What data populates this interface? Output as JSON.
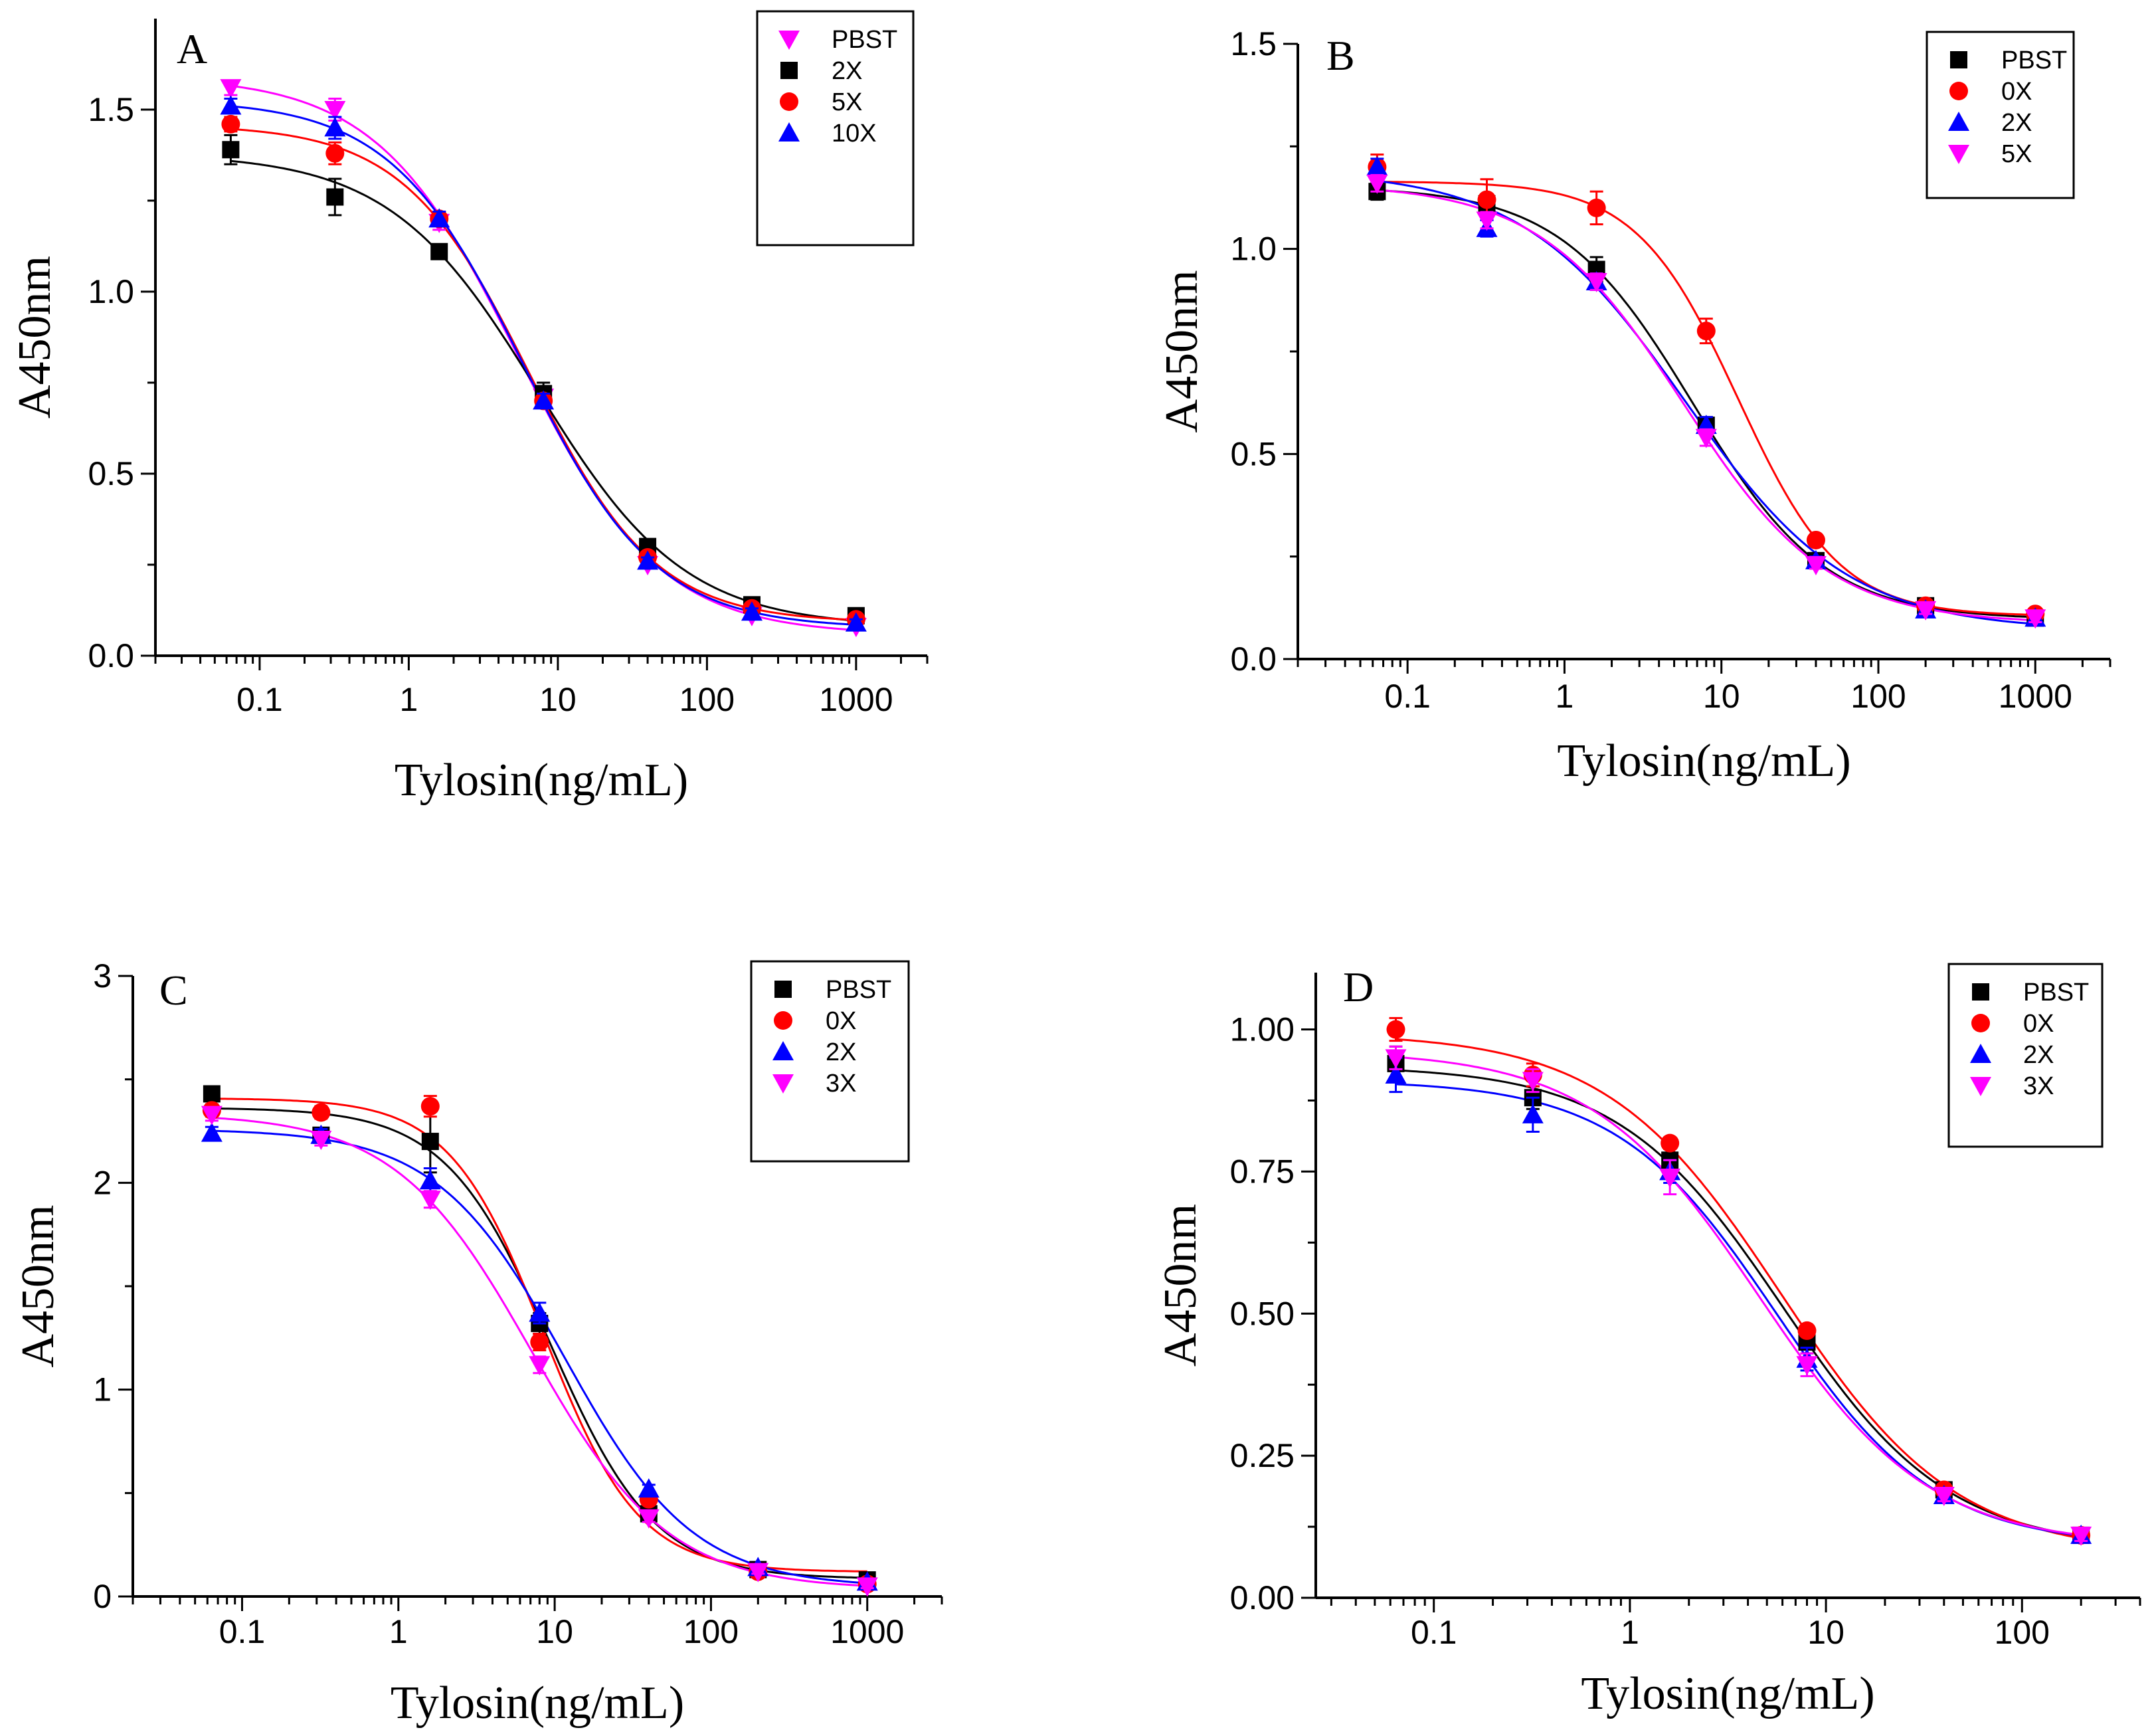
{
  "chart_data": [
    {
      "type": "scatter",
      "panel_label": "A",
      "title": "",
      "xlabel": "Tylosin(ng/mL)",
      "ylabel": "A450nm",
      "xscale": "log",
      "xlim": [
        0.02,
        3000
      ],
      "ylim": [
        0,
        1.75
      ],
      "x_ticks": [
        0.1,
        1,
        10,
        100,
        1000
      ],
      "x_tick_labels": [
        "0.1",
        "1",
        "10",
        "100",
        "1000"
      ],
      "y_ticks": [
        0,
        0.5,
        1.0,
        1.5
      ],
      "y_tick_labels": [
        "0.0",
        "0.5",
        "1.0",
        "1.5"
      ],
      "grid": false,
      "legend_position": "top-right",
      "x": [
        0.064,
        0.32,
        1.6,
        8,
        40,
        200,
        1000
      ],
      "series": [
        {
          "name": "PBST",
          "color": "#ff00ff",
          "marker": "triangle-down",
          "values": [
            1.56,
            1.5,
            1.19,
            0.71,
            0.25,
            0.11,
            0.08
          ],
          "error": [
            0.02,
            0.03,
            0.02,
            0.03,
            0.01,
            0.01,
            0.01
          ]
        },
        {
          "name": "2X",
          "color": "#000000",
          "marker": "square",
          "values": [
            1.39,
            1.26,
            1.11,
            0.72,
            0.3,
            0.14,
            0.11
          ],
          "error": [
            0.04,
            0.05,
            0.02,
            0.03,
            0.01,
            0.01,
            0.01
          ]
        },
        {
          "name": "5X",
          "color": "#ff0000",
          "marker": "circle",
          "values": [
            1.46,
            1.38,
            1.2,
            0.7,
            0.27,
            0.13,
            0.1
          ],
          "error": [
            0.02,
            0.03,
            0.02,
            0.02,
            0.01,
            0.01,
            0.01
          ]
        },
        {
          "name": "10X",
          "color": "#0000ff",
          "marker": "triangle-up",
          "values": [
            1.51,
            1.45,
            1.2,
            0.7,
            0.26,
            0.12,
            0.09
          ],
          "error": [
            0.02,
            0.03,
            0.02,
            0.02,
            0.01,
            0.01,
            0.01
          ]
        }
      ]
    },
    {
      "type": "scatter",
      "panel_label": "B",
      "title": "",
      "xlabel": "Tylosin(ng/mL)",
      "ylabel": "A450nm",
      "xscale": "log",
      "xlim": [
        0.02,
        3000
      ],
      "ylim": [
        0,
        1.5
      ],
      "x_ticks": [
        0.1,
        1,
        10,
        100,
        1000
      ],
      "x_tick_labels": [
        "0.1",
        "1",
        "10",
        "100",
        "1000"
      ],
      "y_ticks": [
        0,
        0.5,
        1.0,
        1.5
      ],
      "y_tick_labels": [
        "0.0",
        "0.5",
        "1.0",
        "1.5"
      ],
      "grid": false,
      "legend_position": "top-right",
      "x": [
        0.064,
        0.32,
        1.6,
        8,
        40,
        200,
        1000
      ],
      "series": [
        {
          "name": "PBST",
          "color": "#000000",
          "marker": "square",
          "values": [
            1.14,
            1.11,
            0.95,
            0.57,
            0.24,
            0.13,
            0.1
          ],
          "error": [
            0.02,
            0.02,
            0.03,
            0.02,
            0.01,
            0.01,
            0.01
          ]
        },
        {
          "name": "0X",
          "color": "#ff0000",
          "marker": "circle",
          "values": [
            1.2,
            1.12,
            1.1,
            0.8,
            0.29,
            0.13,
            0.11
          ],
          "error": [
            0.03,
            0.05,
            0.04,
            0.03,
            0.01,
            0.01,
            0.01
          ]
        },
        {
          "name": "2X",
          "color": "#0000ff",
          "marker": "triangle-up",
          "values": [
            1.2,
            1.05,
            0.92,
            0.57,
            0.24,
            0.12,
            0.1
          ],
          "error": [
            0.02,
            0.02,
            0.02,
            0.02,
            0.01,
            0.01,
            0.01
          ]
        },
        {
          "name": "5X",
          "color": "#ff00ff",
          "marker": "triangle-down",
          "values": [
            1.16,
            1.07,
            0.92,
            0.54,
            0.23,
            0.12,
            0.1
          ],
          "error": [
            0.02,
            0.02,
            0.02,
            0.02,
            0.01,
            0.01,
            0.01
          ]
        }
      ]
    },
    {
      "type": "scatter",
      "panel_label": "C",
      "title": "",
      "xlabel": "Tylosin(ng/mL)",
      "ylabel": "A450nm",
      "xscale": "log",
      "xlim": [
        0.02,
        3000
      ],
      "ylim": [
        0,
        3
      ],
      "x_ticks": [
        0.1,
        1,
        10,
        100,
        1000
      ],
      "x_tick_labels": [
        "0.1",
        "1",
        "10",
        "100",
        "1000"
      ],
      "y_ticks": [
        0,
        1,
        2,
        3
      ],
      "y_tick_labels": [
        "0",
        "1",
        "2",
        "3"
      ],
      "grid": false,
      "legend_position": "top-right",
      "x": [
        0.064,
        0.32,
        1.6,
        8,
        40,
        200,
        1000
      ],
      "series": [
        {
          "name": "PBST",
          "color": "#000000",
          "marker": "square",
          "values": [
            2.43,
            2.23,
            2.2,
            1.32,
            0.4,
            0.13,
            0.08
          ],
          "error": [
            0.02,
            0.03,
            0.15,
            0.05,
            0.02,
            0.01,
            0.01
          ]
        },
        {
          "name": "0X",
          "color": "#ff0000",
          "marker": "circle",
          "values": [
            2.35,
            2.34,
            2.37,
            1.23,
            0.47,
            0.12,
            0.06
          ],
          "error": [
            0.03,
            0.03,
            0.05,
            0.04,
            0.02,
            0.01,
            0.01
          ]
        },
        {
          "name": "2X",
          "color": "#0000ff",
          "marker": "triangle-up",
          "values": [
            2.24,
            2.23,
            2.01,
            1.37,
            0.52,
            0.14,
            0.07
          ],
          "error": [
            0.03,
            0.03,
            0.06,
            0.05,
            0.02,
            0.01,
            0.01
          ]
        },
        {
          "name": "3X",
          "color": "#ff00ff",
          "marker": "triangle-down",
          "values": [
            2.33,
            2.21,
            1.92,
            1.12,
            0.38,
            0.12,
            0.05
          ],
          "error": [
            0.03,
            0.03,
            0.04,
            0.04,
            0.02,
            0.01,
            0.01
          ]
        }
      ]
    },
    {
      "type": "scatter",
      "panel_label": "D",
      "title": "",
      "xlabel": "Tylosin(ng/mL)",
      "ylabel": "A450nm",
      "xscale": "log",
      "xlim": [
        0.025,
        400
      ],
      "ylim": [
        0,
        1.1
      ],
      "x_ticks": [
        0.1,
        1,
        10,
        100
      ],
      "x_tick_labels": [
        "0.1",
        "1",
        "10",
        "100"
      ],
      "y_ticks": [
        0,
        0.25,
        0.5,
        0.75,
        1.0
      ],
      "y_tick_labels": [
        "0.00",
        "0.25",
        "0.50",
        "0.75",
        "1.00"
      ],
      "grid": false,
      "legend_position": "top-right",
      "x": [
        0.064,
        0.32,
        1.6,
        8,
        40,
        200
      ],
      "series": [
        {
          "name": "PBST",
          "color": "#000000",
          "marker": "square",
          "values": [
            0.94,
            0.88,
            0.77,
            0.45,
            0.19,
            0.11
          ],
          "error": [
            0.03,
            0.02,
            0.02,
            0.02,
            0.01,
            0.01
          ]
        },
        {
          "name": "0X",
          "color": "#ff0000",
          "marker": "circle",
          "values": [
            1.0,
            0.92,
            0.8,
            0.47,
            0.19,
            0.11
          ],
          "error": [
            0.02,
            0.02,
            0.01,
            0.01,
            0.01,
            0.01
          ]
        },
        {
          "name": "2X",
          "color": "#0000ff",
          "marker": "triangle-up",
          "values": [
            0.92,
            0.85,
            0.75,
            0.42,
            0.18,
            0.11
          ],
          "error": [
            0.03,
            0.03,
            0.02,
            0.02,
            0.01,
            0.01
          ]
        },
        {
          "name": "3X",
          "color": "#ff00ff",
          "marker": "triangle-down",
          "values": [
            0.95,
            0.91,
            0.74,
            0.41,
            0.18,
            0.11
          ],
          "error": [
            0.02,
            0.02,
            0.03,
            0.02,
            0.01,
            0.01
          ]
        }
      ]
    }
  ]
}
